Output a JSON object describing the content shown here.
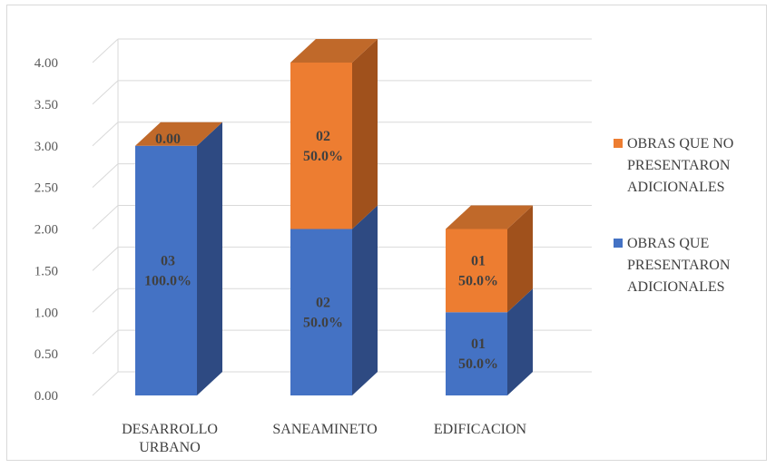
{
  "chart_data": {
    "type": "bar",
    "stacked": true,
    "three_d": true,
    "title": "",
    "xlabel": "",
    "ylabel": "",
    "ylim": [
      0,
      4
    ],
    "yticks": [
      "0.00",
      "0.50",
      "1.00",
      "1.50",
      "2.00",
      "2.50",
      "3.00",
      "3.50",
      "4.00"
    ],
    "grid": true,
    "legend_position": "right",
    "categories": [
      [
        "DESARROLLO",
        "URBANO"
      ],
      [
        "SANEAMINETO"
      ],
      [
        "EDIFICACION"
      ]
    ],
    "series": [
      {
        "name": [
          "OBRAS QUE",
          "PRESENTARON",
          "ADICIONALES"
        ],
        "color": "#4472c4",
        "side_color": "#2e4a82",
        "values": [
          3,
          2,
          1
        ],
        "labels": [
          [
            "03",
            "100.0%"
          ],
          [
            "02",
            "50.0%"
          ],
          [
            "01",
            "50.0%"
          ]
        ]
      },
      {
        "name": [
          "OBRAS QUE NO",
          "PRESENTARON",
          "ADICIONALES"
        ],
        "color": "#ed7d31",
        "side_color": "#a0511c",
        "values": [
          0,
          2,
          1
        ],
        "labels": [
          [
            "0.00"
          ],
          [
            "02",
            "50.0%"
          ],
          [
            "01",
            "50.0%"
          ]
        ]
      }
    ]
  }
}
